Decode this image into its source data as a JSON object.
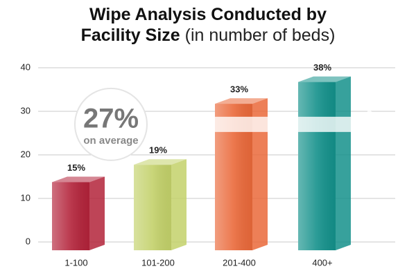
{
  "chart_data": {
    "type": "bar3d",
    "title": "Wipe Analysis Conducted by Facility Size",
    "subtitle": "(in number of beds)",
    "categories": [
      "1-100",
      "101-200",
      "201-400",
      "400+"
    ],
    "values": [
      15,
      19,
      33,
      38
    ],
    "value_labels": [
      "15%",
      "19%",
      "33%",
      "38%"
    ],
    "colors": [
      "#b3233a",
      "#c3d16a",
      "#ea693a",
      "#14918b"
    ],
    "ylim": [
      0,
      40
    ],
    "yticks": [
      0,
      10,
      20,
      30,
      40
    ],
    "grid": true,
    "average": {
      "value": 27,
      "label": "27%"
    },
    "average_note": "on average"
  }
}
